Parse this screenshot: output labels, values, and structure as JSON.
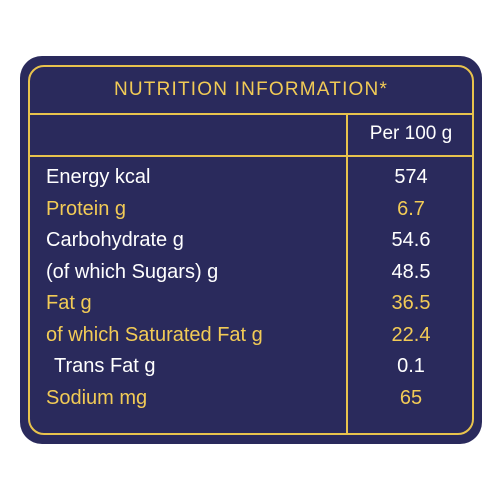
{
  "colors": {
    "background": "#2a2a5c",
    "accent": "#e8c34d",
    "text_primary": "#ffffff",
    "text_highlight": "#f2cb56"
  },
  "panel": {
    "title": "NUTRITION INFORMATION*",
    "column_header": "Per 100 g"
  },
  "rows": [
    {
      "label": "Energy kcal",
      "value": "574",
      "color": "white"
    },
    {
      "label": "Protein g",
      "value": "6.7",
      "color": "gold"
    },
    {
      "label": "Carbohydrate g",
      "value": "54.6",
      "color": "white"
    },
    {
      "label": "(of which Sugars) g",
      "value": "48.5",
      "color": "white"
    },
    {
      "label": "Fat g",
      "value": "36.5",
      "color": "gold"
    },
    {
      "label": "of which Saturated Fat g",
      "value": "22.4",
      "color": "gold"
    },
    {
      "label": "Trans Fat g",
      "value": "0.1",
      "color": "white"
    },
    {
      "label": "Sodium mg",
      "value": "65",
      "color": "gold"
    }
  ]
}
